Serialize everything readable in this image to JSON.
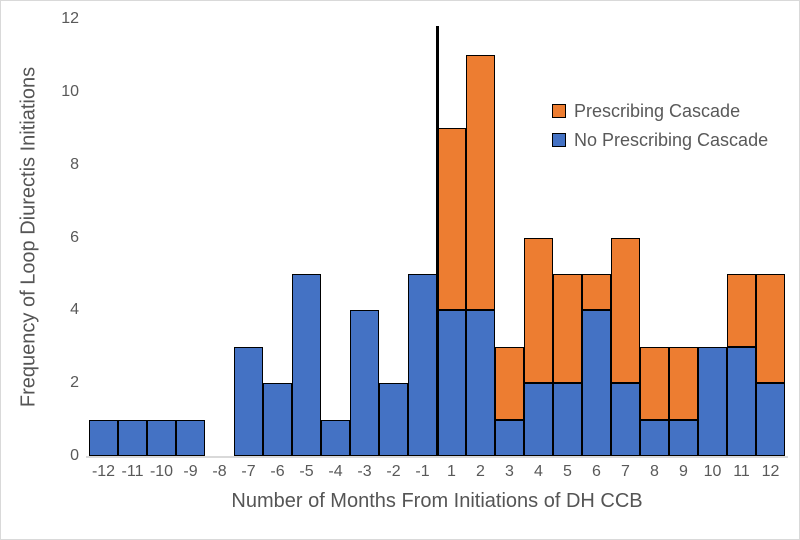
{
  "chart_data": {
    "type": "bar",
    "stacked": true,
    "title": "",
    "xlabel": "Number of Months From Initiations of DH CCB",
    "ylabel": "Frequency of Loop Diurectis Initiations",
    "categories": [
      "-12",
      "-11",
      "-10",
      "-9",
      "-8",
      "-7",
      "-6",
      "-5",
      "-4",
      "-3",
      "-2",
      "-1",
      "1",
      "2",
      "3",
      "4",
      "5",
      "6",
      "7",
      "8",
      "9",
      "10",
      "11",
      "12"
    ],
    "series": [
      {
        "name": "No Prescribing Cascade",
        "color": "#4472C4",
        "values": [
          1,
          1,
          1,
          1,
          0,
          3,
          2,
          5,
          1,
          4,
          2,
          5,
          4,
          4,
          1,
          2,
          2,
          4,
          2,
          1,
          1,
          3,
          3,
          2
        ]
      },
      {
        "name": "Prescribing Cascade",
        "color": "#ED7D31",
        "values": [
          0,
          0,
          0,
          0,
          0,
          0,
          0,
          0,
          0,
          0,
          0,
          0,
          5,
          7,
          2,
          4,
          3,
          1,
          4,
          2,
          2,
          0,
          2,
          3
        ]
      }
    ],
    "y_ticks": [
      0,
      2,
      4,
      6,
      8,
      10,
      12
    ],
    "ylim": [
      0,
      12
    ],
    "grid": "off",
    "legend_position": "upper-right-inside",
    "legend": [
      {
        "label": "Prescribing Cascade",
        "color": "#ED7D31"
      },
      {
        "label": "No Prescribing Cascade",
        "color": "#4472C4"
      }
    ],
    "reference_line": {
      "at_category": "1",
      "side": "left-boundary",
      "value_top": 11.8,
      "color": "#000000"
    },
    "bar_outline_color": "#000000",
    "axis_line_color": "#D9D9D9",
    "tick_text_color": "#595959"
  }
}
